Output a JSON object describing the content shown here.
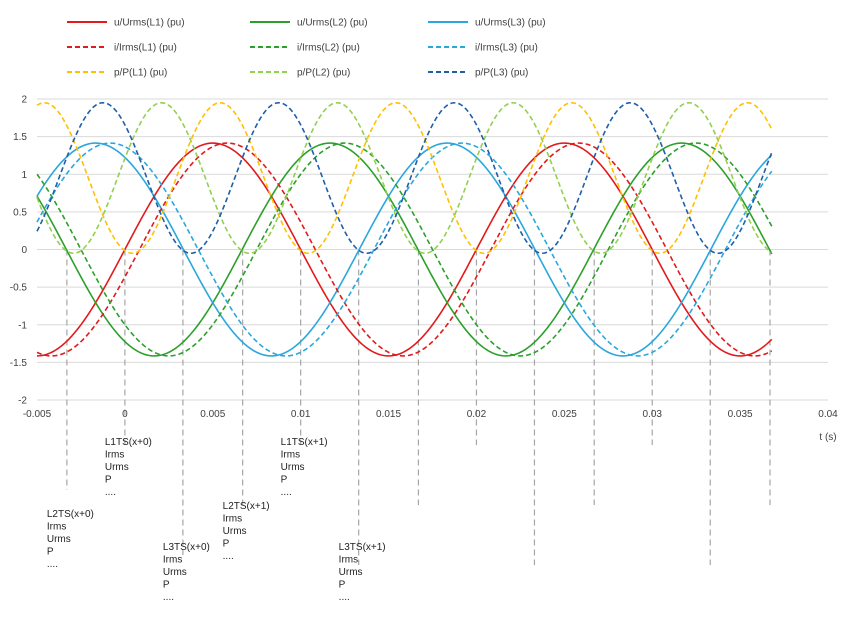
{
  "chart_data": {
    "type": "line",
    "title": "",
    "xlabel": "t (s)",
    "ylabel": "",
    "xlim": [
      -0.005,
      0.04
    ],
    "ylim": [
      -2,
      2
    ],
    "x_ticks": [
      "-0.005",
      "0",
      "0.005",
      "0.01",
      "0.015",
      "0.02",
      "0.025",
      "0.03",
      "0.035",
      "0.04"
    ],
    "y_ticks": [
      "2",
      "1.5",
      "1",
      "0.5",
      "0",
      "-0.5",
      "-1",
      "-1.5",
      "-2"
    ],
    "grid": "horizontal",
    "legend_placement": "top",
    "series": [
      {
        "name": "u/Urms(L1) (pu)",
        "color": "#e31a1c",
        "dash": "solid",
        "amplitude": 1.414,
        "offset": 0,
        "frequency_hz": 50,
        "peak_time_s": 0.005
      },
      {
        "name": "u/Urms(L2) (pu)",
        "color": "#2ca02c",
        "dash": "solid",
        "amplitude": 1.414,
        "offset": 0,
        "frequency_hz": 50,
        "peak_time_s": 0.01167
      },
      {
        "name": "u/Urms(L3) (pu)",
        "color": "#2aa7dc",
        "dash": "solid",
        "amplitude": 1.414,
        "offset": 0,
        "frequency_hz": 50,
        "peak_time_s": -0.00167
      },
      {
        "name": "i/Irms(L1) (pu)",
        "color": "#e31a1c",
        "dash": "dashed",
        "amplitude": 1.414,
        "offset": 0,
        "frequency_hz": 50,
        "peak_time_s": 0.00583
      },
      {
        "name": "i/Irms(L2) (pu)",
        "color": "#2ca02c",
        "dash": "dashed",
        "amplitude": 1.414,
        "offset": 0,
        "frequency_hz": 50,
        "peak_time_s": 0.0125
      },
      {
        "name": "i/Irms(L3) (pu)",
        "color": "#2aa7dc",
        "dash": "dashed",
        "amplitude": 1.414,
        "offset": 0,
        "frequency_hz": 50,
        "peak_time_s": -0.00083
      },
      {
        "name": "p/P(L1) (pu)",
        "color": "#ffc000",
        "dash": "dashed",
        "amplitude": 1.0,
        "offset": 0.95,
        "frequency_hz": 100,
        "peak_time_s": 0.00542
      },
      {
        "name": "p/P(L2) (pu)",
        "color": "#92d050",
        "dash": "dashed",
        "amplitude": 1.0,
        "offset": 0.95,
        "frequency_hz": 100,
        "peak_time_s": 0.00208
      },
      {
        "name": "p/P(L3) (pu)",
        "color": "#1f5fa8",
        "dash": "dashed",
        "amplitude": 1.0,
        "offset": 0.95,
        "frequency_hz": 100,
        "peak_time_s": -0.00125
      }
    ],
    "x_end": 0.0368,
    "marker_times": [
      -0.0033,
      0,
      0.0033,
      0.0067,
      0.01,
      0.0133,
      0.0167,
      0.02,
      0.0233,
      0.0267,
      0.03,
      0.0333,
      0.0367
    ],
    "annotations": [
      {
        "x": 0,
        "lines": [
          "L1TS(x+0)",
          "Irms",
          "Urms",
          "P",
          "...."
        ]
      },
      {
        "x": -0.0033,
        "lines": [
          "L2TS(x+0)",
          "Irms",
          "Urms",
          "P",
          "...."
        ]
      },
      {
        "x": 0.0033,
        "lines": [
          "L3TS(x+0)",
          "Irms",
          "Urms",
          "P",
          "...."
        ]
      },
      {
        "x": 0.0067,
        "lines": [
          "L2TS(x+1)",
          "Irms",
          "Urms",
          "P",
          "...."
        ]
      },
      {
        "x": 0.01,
        "lines": [
          "L1TS(x+1)",
          "Irms",
          "Urms",
          "P",
          "...."
        ]
      },
      {
        "x": 0.0133,
        "lines": [
          "L3TS(x+1)",
          "Irms",
          "Urms",
          "P",
          "...."
        ]
      }
    ]
  }
}
